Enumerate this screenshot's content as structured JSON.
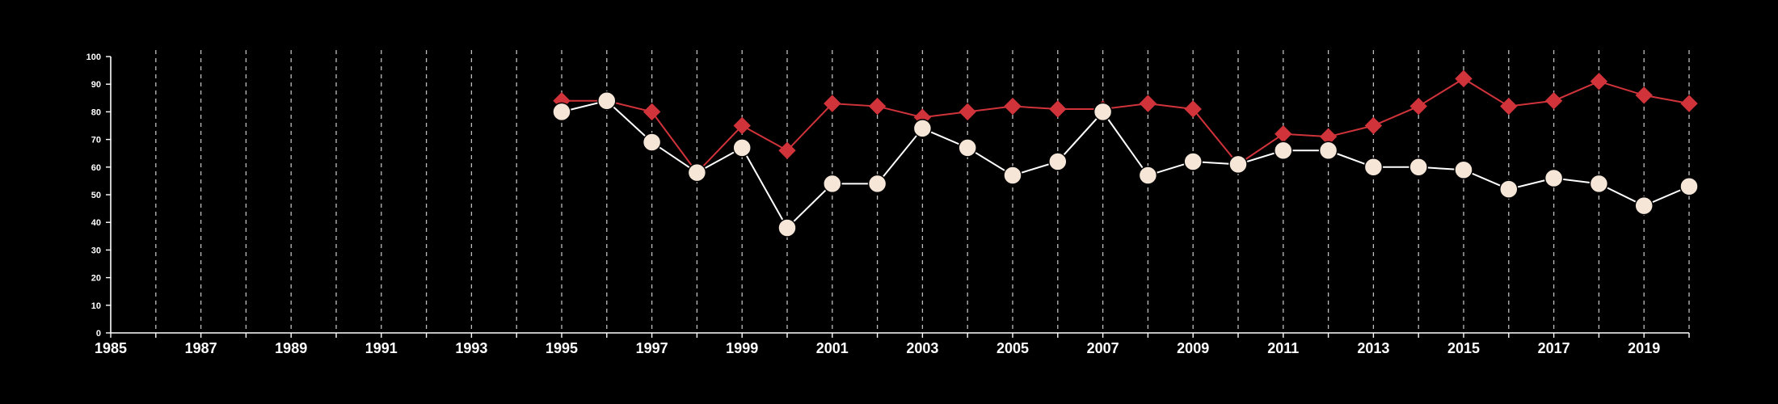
{
  "chart_data": {
    "type": "line",
    "title": "",
    "xlabel": "",
    "ylabel": "",
    "xlim": [
      1985,
      2020
    ],
    "ylim": [
      0,
      100
    ],
    "x_ticks": [
      1985,
      1987,
      1989,
      1991,
      1993,
      1995,
      1997,
      1999,
      2001,
      2003,
      2005,
      2007,
      2009,
      2011,
      2013,
      2015,
      2017,
      2019
    ],
    "y_ticks": [
      0,
      10,
      20,
      30,
      40,
      50,
      60,
      70,
      80,
      90,
      100
    ],
    "grid": {
      "x": true,
      "y": false,
      "style": "dashed",
      "color": "#bfbfbf"
    },
    "background": "#000000",
    "axis_color": "#ffffff",
    "x": [
      1995,
      1996,
      1997,
      1998,
      1999,
      2000,
      2001,
      2002,
      2003,
      2004,
      2005,
      2006,
      2007,
      2008,
      2009,
      2010,
      2011,
      2012,
      2013,
      2014,
      2015,
      2016,
      2017,
      2018,
      2019,
      2020
    ],
    "series": [
      {
        "marker": "diamond",
        "color": "#d0333a",
        "values": [
          84,
          84,
          80,
          58,
          75,
          66,
          83,
          82,
          78,
          80,
          82,
          81,
          81,
          83,
          81,
          61,
          72,
          71,
          75,
          82,
          92,
          82,
          84,
          91,
          86,
          83
        ]
      },
      {
        "marker": "circle",
        "color": "#ffffff",
        "fill": "#f5e6d8",
        "values": [
          80,
          84,
          69,
          58,
          67,
          38,
          54,
          54,
          74,
          67,
          57,
          62,
          80,
          57,
          62,
          61,
          66,
          66,
          60,
          60,
          59,
          52,
          56,
          54,
          46,
          53
        ]
      }
    ]
  }
}
